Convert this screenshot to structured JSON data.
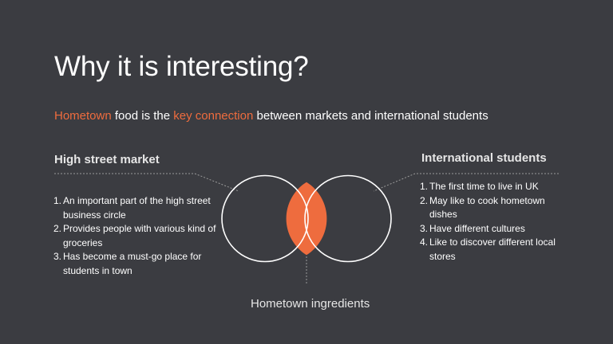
{
  "slide": {
    "title": "Why it is interesting?",
    "subtitle": {
      "part1": "Hometown",
      "part2": " food is the ",
      "part3": "key connection",
      "part4": " between markets and international students"
    }
  },
  "left": {
    "heading": "High street market",
    "items": [
      {
        "num": "1.",
        "text": "An important part of the high street business circle"
      },
      {
        "num": "2.",
        "text": "Provides people with various kind of groceries"
      },
      {
        "num": "3.",
        "text": "Has become a must-go place for students in town"
      }
    ]
  },
  "right": {
    "heading": "International students",
    "items": [
      {
        "num": "1.",
        "text": "The first time to live in UK"
      },
      {
        "num": "2.",
        "text": "May like to cook hometown dishes"
      },
      {
        "num": "3.",
        "text": "Have different cultures"
      },
      {
        "num": "4.",
        "text": "Like to discover different local stores"
      }
    ]
  },
  "center": {
    "caption": "Hometown ingredients"
  },
  "colors": {
    "background": "#3b3c41",
    "accent": "#ee6c3e",
    "text": "#ffffff",
    "dotted": "#9a9a9a"
  }
}
